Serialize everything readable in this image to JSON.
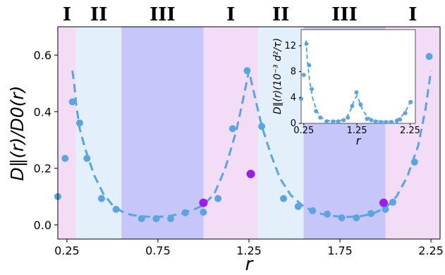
{
  "chart_data": [
    {
      "type": "scatter",
      "xlabel": "r",
      "ylabel": "D∥(r)/D0(r)",
      "xlim": [
        0.2,
        2.3
      ],
      "ylim": [
        -0.05,
        0.7
      ],
      "xticks": [
        "0.25",
        "0.75",
        "1.25",
        "1.75",
        "2.25"
      ],
      "xtick_values": [
        0.25,
        0.75,
        1.25,
        1.75,
        2.25
      ],
      "yticks": [
        "0.0",
        "0.2",
        "0.4",
        "0.6"
      ],
      "ytick_values": [
        0.0,
        0.2,
        0.4,
        0.6
      ],
      "regions": [
        {
          "label": "I",
          "x0": 0.2,
          "x1": 0.3,
          "color": "#f3ddf6"
        },
        {
          "label": "II",
          "x0": 0.3,
          "x1": 0.55,
          "color": "#e3effa"
        },
        {
          "label": "III",
          "x0": 0.55,
          "x1": 1.0,
          "color": "#c6c6fa"
        },
        {
          "label": "I",
          "x0": 1.0,
          "x1": 1.3,
          "color": "#f3ddf6"
        },
        {
          "label": "II",
          "x0": 1.3,
          "x1": 1.55,
          "color": "#e3effa"
        },
        {
          "label": "III",
          "x0": 1.55,
          "x1": 2.0,
          "color": "#c6c6fa"
        },
        {
          "label": "I",
          "x0": 2.0,
          "x1": 2.3,
          "color": "#f3ddf6"
        }
      ],
      "series": [
        {
          "color": "#5aa4e3",
          "points": [
            [
              0.2,
              0.1
            ],
            [
              0.24,
              0.235
            ],
            [
              0.28,
              0.435
            ],
            [
              0.32,
              0.36
            ],
            [
              0.36,
              0.235
            ],
            [
              0.44,
              0.093
            ],
            [
              0.52,
              0.055
            ],
            [
              0.66,
              0.022
            ],
            [
              0.74,
              0.022
            ],
            [
              0.82,
              0.022
            ],
            [
              0.9,
              0.043
            ],
            [
              1.0,
              0.045
            ],
            [
              1.08,
              0.093
            ],
            [
              1.16,
              0.34
            ],
            [
              1.24,
              0.545
            ],
            [
              1.32,
              0.348
            ],
            [
              1.44,
              0.093
            ],
            [
              1.52,
              0.065
            ],
            [
              1.6,
              0.05
            ],
            [
              1.68,
              0.038
            ],
            [
              1.76,
              0.025
            ],
            [
              1.84,
              0.025
            ],
            [
              1.92,
              0.04
            ],
            [
              2.0,
              0.055
            ],
            [
              2.04,
              0.08
            ],
            [
              2.16,
              0.222
            ],
            [
              2.24,
              0.595
            ]
          ]
        },
        {
          "color": "#9a1eea",
          "points": [
            [
              1.0,
              0.078
            ],
            [
              1.26,
              0.18
            ],
            [
              1.99,
              0.078
            ]
          ]
        }
      ],
      "fit_curve": {
        "color": "#5aa4e3",
        "points": [
          [
            0.28,
            0.545
          ],
          [
            0.29,
            0.5
          ],
          [
            0.3,
            0.43
          ],
          [
            0.32,
            0.34
          ],
          [
            0.35,
            0.27
          ],
          [
            0.4,
            0.175
          ],
          [
            0.45,
            0.11
          ],
          [
            0.5,
            0.07
          ],
          [
            0.55,
            0.048
          ],
          [
            0.6,
            0.036
          ],
          [
            0.66,
            0.03
          ],
          [
            0.72,
            0.028
          ],
          [
            0.8,
            0.03
          ],
          [
            0.88,
            0.04
          ],
          [
            0.95,
            0.055
          ],
          [
            1.0,
            0.07
          ],
          [
            1.06,
            0.11
          ],
          [
            1.12,
            0.2
          ],
          [
            1.18,
            0.33
          ],
          [
            1.22,
            0.45
          ],
          [
            1.25,
            0.545
          ],
          [
            1.28,
            0.46
          ],
          [
            1.32,
            0.35
          ],
          [
            1.37,
            0.25
          ],
          [
            1.42,
            0.165
          ],
          [
            1.48,
            0.105
          ],
          [
            1.55,
            0.065
          ],
          [
            1.62,
            0.043
          ],
          [
            1.7,
            0.032
          ],
          [
            1.78,
            0.028
          ],
          [
            1.86,
            0.03
          ],
          [
            1.93,
            0.04
          ],
          [
            2.0,
            0.06
          ],
          [
            2.06,
            0.1
          ],
          [
            2.12,
            0.17
          ],
          [
            2.18,
            0.28
          ],
          [
            2.22,
            0.41
          ],
          [
            2.25,
            0.545
          ]
        ]
      }
    },
    {
      "type": "scatter",
      "xlabel": "r",
      "ylabel": "D∥(r)(10⁻³ d²/τ)",
      "xlim": [
        0.2,
        2.35
      ],
      "ylim": [
        0,
        14.5
      ],
      "xticks": [
        "0.25",
        "1.25",
        "2.25"
      ],
      "xtick_values": [
        0.25,
        1.25,
        2.25
      ],
      "yticks": [
        "0",
        "4",
        "8",
        "12"
      ],
      "ytick_values": [
        0,
        4,
        8,
        12
      ],
      "series": [
        {
          "color": "#5aa4e3",
          "points": [
            [
              0.2,
              3.8
            ],
            [
              0.25,
              7.5
            ],
            [
              0.3,
              12.3
            ],
            [
              0.35,
              9.0
            ],
            [
              0.4,
              5.3
            ],
            [
              0.48,
              1.9
            ],
            [
              0.56,
              0.9
            ],
            [
              0.68,
              0.3
            ],
            [
              0.8,
              0.3
            ],
            [
              0.9,
              0.3
            ],
            [
              1.0,
              0.5
            ],
            [
              1.08,
              0.9
            ],
            [
              1.16,
              2.7
            ],
            [
              1.24,
              4.8
            ],
            [
              1.32,
              2.9
            ],
            [
              1.44,
              0.7
            ],
            [
              1.52,
              0.5
            ],
            [
              1.6,
              0.3
            ],
            [
              1.7,
              0.2
            ],
            [
              1.8,
              0.2
            ],
            [
              1.9,
              0.2
            ],
            [
              2.0,
              0.4
            ],
            [
              2.06,
              0.6
            ],
            [
              2.16,
              1.6
            ],
            [
              2.26,
              3.3
            ]
          ]
        }
      ],
      "fit_curve": {
        "color": "#5aa4e3",
        "points": [
          [
            0.29,
            12.8
          ],
          [
            0.32,
            9.5
          ],
          [
            0.36,
            6.5
          ],
          [
            0.42,
            3.8
          ],
          [
            0.5,
            1.8
          ],
          [
            0.6,
            0.8
          ],
          [
            0.72,
            0.4
          ],
          [
            0.85,
            0.35
          ],
          [
            0.97,
            0.5
          ],
          [
            1.06,
            1.0
          ],
          [
            1.14,
            2.2
          ],
          [
            1.2,
            3.6
          ],
          [
            1.25,
            4.3
          ],
          [
            1.3,
            3.3
          ],
          [
            1.36,
            2.0
          ],
          [
            1.45,
            1.0
          ],
          [
            1.55,
            0.5
          ],
          [
            1.7,
            0.3
          ],
          [
            1.85,
            0.3
          ],
          [
            1.98,
            0.5
          ],
          [
            2.08,
            1.0
          ],
          [
            2.16,
            1.8
          ],
          [
            2.23,
            2.9
          ],
          [
            2.27,
            3.6
          ]
        ]
      }
    }
  ]
}
